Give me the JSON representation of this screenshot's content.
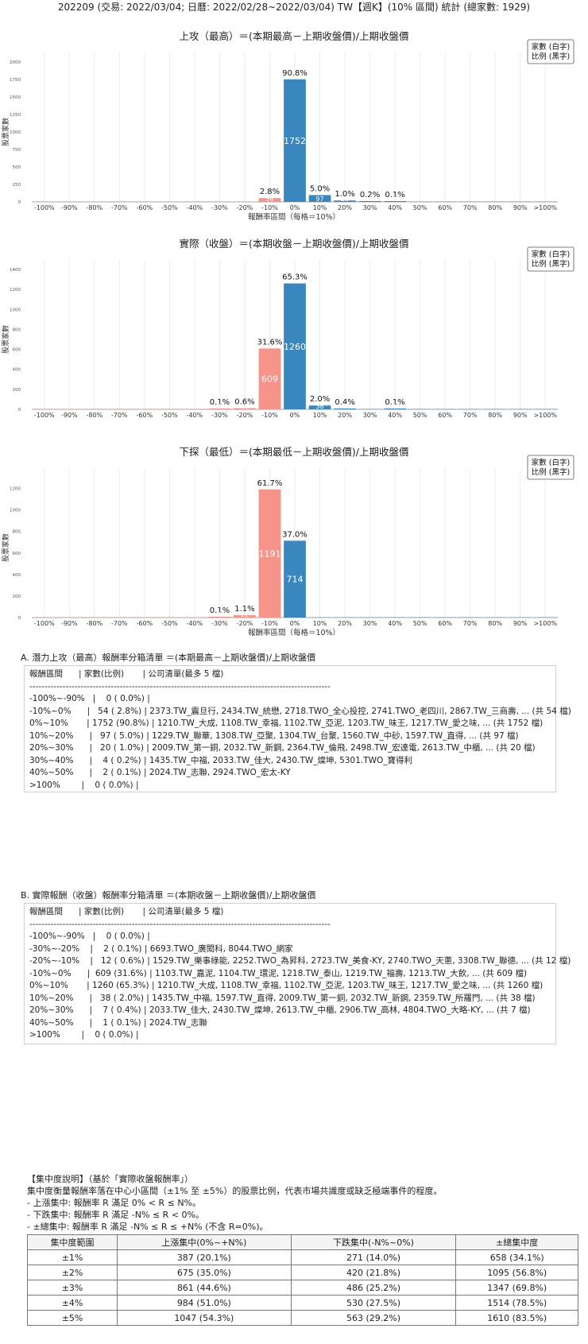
{
  "page_title": "202209 (交易: 2022/03/04; 日曆: 2022/02/28~2022/03/04) TW【週K】(10% 區間) 統計 (總家數: 1929)",
  "legend_lines": [
    "家數 (白字)",
    "比例 (黑字)"
  ],
  "colors": {
    "positive": "#3a87c0",
    "negative": "#f6938a",
    "grid": "#ececec",
    "axis": "#888888"
  },
  "chart_data": [
    {
      "type": "bar",
      "title": "上攻（最高）＝(本期最高－上期收盤價)/上期收盤價",
      "xlabel": "報酬率區間（每格＝10%）",
      "ylabel": "股票家數",
      "categories": [
        "-100%",
        "-90%",
        "-80%",
        "-70%",
        "-60%",
        "-50%",
        "-40%",
        "-30%",
        "-20%",
        "-10%",
        "0%",
        "10%",
        "20%",
        "30%",
        "40%",
        "50%",
        "60%",
        "70%",
        "80%",
        "90%",
        ">100%"
      ],
      "values": [
        0,
        0,
        0,
        0,
        0,
        0,
        0,
        0,
        0,
        54,
        1752,
        97,
        20,
        4,
        2,
        0,
        0,
        0,
        0,
        0,
        0
      ],
      "pct_labels": [
        "",
        "",
        "",
        "",
        "",
        "",
        "",
        "",
        "",
        "2.8%",
        "90.8%",
        "5.0%",
        "1.0%",
        "0.2%",
        "0.1%",
        "",
        "",
        "",
        "",
        "",
        ""
      ],
      "yticks": [
        0,
        250,
        500,
        750,
        1000,
        1250,
        1500,
        1750,
        2000
      ],
      "ylim": [
        0,
        2000
      ]
    },
    {
      "type": "bar",
      "title": "實際（收盤）＝(本期收盤－上期收盤價)/上期收盤價",
      "xlabel": "",
      "ylabel": "股票家數",
      "categories": [
        "-100%",
        "-90%",
        "-80%",
        "-70%",
        "-60%",
        "-50%",
        "-40%",
        "-30%",
        "-20%",
        "-10%",
        "0%",
        "10%",
        "20%",
        "30%",
        "40%",
        "50%",
        "60%",
        "70%",
        "80%",
        "90%",
        ">100%"
      ],
      "values": [
        0,
        0,
        0,
        0,
        0,
        0,
        0,
        2,
        12,
        609,
        1260,
        38,
        7,
        0,
        1,
        0,
        0,
        0,
        0,
        0,
        0
      ],
      "pct_labels": [
        "",
        "",
        "",
        "",
        "",
        "",
        "",
        "0.1%",
        "0.6%",
        "31.6%",
        "65.3%",
        "2.0%",
        "0.4%",
        "",
        "0.1%",
        "",
        "",
        "",
        "",
        "",
        ""
      ],
      "yticks": [
        0,
        200,
        400,
        600,
        800,
        1000,
        1200,
        1400
      ],
      "ylim": [
        0,
        1400
      ]
    },
    {
      "type": "bar",
      "title": "下探（最低）＝(本期最低－上期收盤價)/上期收盤價",
      "xlabel": "報酬率區間（每格＝10%）",
      "ylabel": "股票家數",
      "categories": [
        "-100%",
        "-90%",
        "-80%",
        "-70%",
        "-60%",
        "-50%",
        "-40%",
        "-30%",
        "-20%",
        "-10%",
        "0%",
        "10%",
        "20%",
        "30%",
        "40%",
        "50%",
        "60%",
        "70%",
        "80%",
        "90%",
        ">100%"
      ],
      "values": [
        0,
        0,
        0,
        0,
        0,
        0,
        0,
        2,
        22,
        1191,
        714,
        0,
        0,
        0,
        0,
        0,
        0,
        0,
        0,
        0,
        0
      ],
      "pct_labels": [
        "",
        "",
        "",
        "",
        "",
        "",
        "",
        "0.1%",
        "1.1%",
        "61.7%",
        "37.0%",
        "",
        "",
        "",
        "",
        "",
        "",
        "",
        "",
        "",
        ""
      ],
      "yticks": [
        0,
        200,
        400,
        600,
        800,
        1000,
        1200
      ],
      "ylim": [
        0,
        1300
      ]
    }
  ],
  "section_a": {
    "title": "A. 潛力上攻（最高）報酬率分箱清單 ＝(本期最高－上期收盤價)/上期收盤價",
    "lines": [
      "報酬區間      | 家數(比例)       | 公司清單(最多 5 檔)",
      "----------------------------------------------------------------------------------------------------",
      "-100%~-90%   |    0 ( 0.0%) |",
      "-10%~0%      |   54 ( 2.8%) | 2373.TW_震旦行, 2434.TW_統懋, 2718.TWO_全心投控, 2741.TWO_老四川, 2867.TW_三商壽, ... (共 54 檔)",
      "0%~10%       | 1752 (90.8%) | 1210.TW_大成, 1108.TW_幸福, 1102.TW_亞泥, 1203.TW_味王, 1217.TW_愛之味, ... (共 1752 檔)",
      "10%~20%      |   97 ( 5.0%) | 1229.TW_聯華, 1308.TW_亞聚, 1304.TW_台聚, 1560.TW_中砂, 1597.TW_直得, ... (共 97 檔)",
      "20%~30%      |   20 ( 1.0%) | 2009.TW_第一銅, 2032.TW_新鋼, 2364.TW_倫飛, 2498.TW_宏達電, 2613.TW_中櫃, ... (共 20 檔)",
      "30%~40%      |    4 ( 0.2%) | 1435.TW_中福, 2033.TW_佳大, 2430.TW_燦坤, 5301.TWO_寶得利",
      "40%~50%      |    2 ( 0.1%) | 2024.TW_志聯, 2924.TWO_宏太-KY",
      ">100%        |    0 ( 0.0%) |"
    ]
  },
  "section_b": {
    "title": "B. 實際報酬（收盤）報酬率分箱清單 ＝(本期收盤－上期收盤價)/上期收盤價",
    "lines": [
      "報酬區間      | 家數(比例)       | 公司清單(最多 5 檔)",
      "----------------------------------------------------------------------------------------------------",
      "-100%~-90%   |    0 ( 0.0%) |",
      "-30%~-20%    |    2 ( 0.1%) | 6693.TWO_廣閎科, 8044.TWO_網家",
      "-20%~-10%    |   12 ( 0.6%) | 1529.TW_樂事綠能, 2252.TWO_為昇科, 2723.TW_美食-KY, 2740.TWO_天蔥, 3308.TW_聯德, ... (共 12 檔)",
      "-10%~0%      |  609 (31.6%) | 1103.TW_嘉泥, 1104.TW_環泥, 1218.TW_泰山, 1219.TW_福壽, 1213.TW_大飲, ... (共 609 檔)",
      "0%~10%       | 1260 (65.3%) | 1210.TW_大成, 1108.TW_幸福, 1102.TW_亞泥, 1203.TW_味王, 1217.TW_愛之味, ... (共 1260 檔)",
      "10%~20%      |   38 ( 2.0%) | 1435.TW_中福, 1597.TW_直得, 2009.TW_第一銅, 2032.TW_新鋼, 2359.TW_所羅門, ... (共 38 檔)",
      "20%~30%      |    7 ( 0.4%) | 2033.TW_佳大, 2430.TW_燦坤, 2613.TW_中櫃, 2906.TW_高林, 4804.TWO_大略-KY, ... (共 7 檔)",
      "40%~50%      |    1 ( 0.1%) | 2024.TW_志聯",
      ">100%        |    0 ( 0.0%) |"
    ]
  },
  "concentration": {
    "notes": [
      "【集中度說明】（基於「實際收盤報酬率」）",
      "集中度衡量報酬率落在中心小區間（±1% 至 ±5%）的股票比例，代表市場共識度或缺乏極端事件的程度。",
      " - 上漲集中: 報酬率 R 滿足 0% < R ≤ N%。",
      " - 下跌集中: 報酬率 R 滿足 -N% ≤ R < 0%。",
      " - ±總集中: 報酬率 R 滿足 -N% ≤ R ≤ +N% (不含 R=0%)。"
    ],
    "headers": [
      "集中度範圍",
      "上漲集中(0%~+N%)",
      "下跌集中(-N%~0%)",
      "±總集中度"
    ],
    "rows": [
      [
        "±1%",
        "387 (20.1%)",
        "271 (14.0%)",
        "658 (34.1%)"
      ],
      [
        "±2%",
        "675 (35.0%)",
        "420 (21.8%)",
        "1095 (56.8%)"
      ],
      [
        "±3%",
        "861 (44.6%)",
        "486 (25.2%)",
        "1347 (69.8%)"
      ],
      [
        "±4%",
        "984 (51.0%)",
        "530 (27.5%)",
        "1514 (78.5%)"
      ],
      [
        "±5%",
        "1047 (54.3%)",
        "563 (29.2%)",
        "1610 (83.5%)"
      ]
    ]
  }
}
